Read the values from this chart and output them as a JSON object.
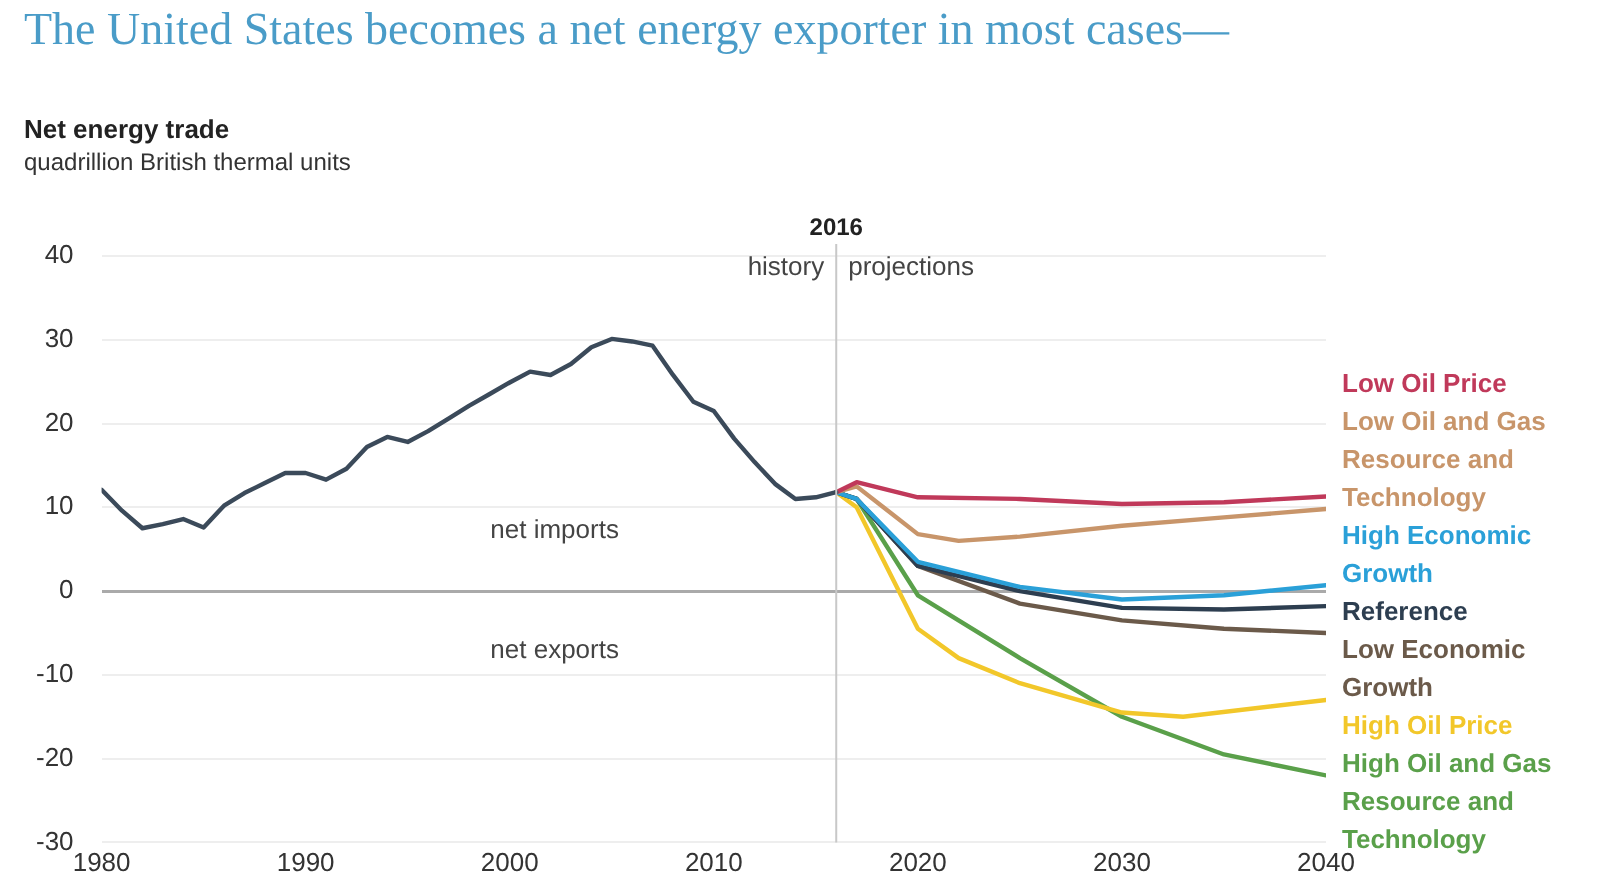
{
  "chart_data": {
    "type": "line",
    "title": "The United States becomes a net energy exporter in most cases—",
    "subtitle": "quadrillion British thermal units",
    "ylabel": "Net energy trade",
    "xlim": [
      1980,
      2040
    ],
    "xticks": [
      1980,
      1990,
      2000,
      2010,
      2020,
      2030,
      2040
    ],
    "ylim": [
      -30,
      40
    ],
    "yticks": [
      -30,
      -20,
      -10,
      0,
      10,
      20,
      30,
      40
    ],
    "grid": "y",
    "legend": "right",
    "marker": "none",
    "line_style": "solid",
    "ref_lines": [
      {
        "axis": "x",
        "value": 2016,
        "label": "2016",
        "color": "#c8c8c8"
      }
    ],
    "annotations": [
      "history",
      "projections",
      "net imports",
      "net exports"
    ],
    "series": [
      {
        "color": "#3b4a5a",
        "x": [
          1980,
          1981,
          1982,
          1983,
          1984,
          1985,
          1986,
          1987,
          1988,
          1989,
          1990,
          1991,
          1992,
          1993,
          1994,
          1995,
          1996,
          1997,
          1998,
          1999,
          2000,
          2001,
          2002,
          2003,
          2004,
          2005,
          2006,
          2007,
          2008,
          2009,
          2010,
          2011,
          2012,
          2013,
          2014,
          2015,
          2016
        ],
        "values": [
          12.1,
          9.6,
          7.5,
          8,
          8.6,
          7.6,
          10.2,
          11.7,
          12.9,
          14.1,
          14.1,
          13.3,
          14.6,
          17.2,
          18.4,
          17.8,
          19.1,
          20.6,
          22.1,
          23.5,
          24.9,
          26.2,
          25.8,
          27.1,
          29.1,
          30.1,
          29.8,
          29.3,
          25.8,
          22.6,
          21.5,
          18.2,
          15.4,
          12.8,
          11,
          11.2,
          11.8
        ]
      },
      {
        "name": "Low Oil Price",
        "color": "#c0395a",
        "x": [
          2016,
          2017,
          2020,
          2025,
          2030,
          2035,
          2040
        ],
        "values": [
          11.8,
          13,
          11.2,
          11,
          10.4,
          10.6,
          11.3
        ]
      },
      {
        "name": "Low Oil and Gas Resource and Technology",
        "color": "#c8956a",
        "x": [
          2016,
          2017,
          2020,
          2022,
          2025,
          2030,
          2035,
          2040
        ],
        "values": [
          11.8,
          12.5,
          6.8,
          6,
          6.5,
          7.8,
          8.8,
          9.8
        ]
      },
      {
        "name": "High Economic Growth",
        "color": "#2aa0d8",
        "x": [
          2016,
          2017,
          2020,
          2025,
          2030,
          2035,
          2040
        ],
        "values": [
          11.8,
          11,
          3.5,
          0.5,
          -1,
          -0.5,
          0.7
        ]
      },
      {
        "name": "Reference",
        "color": "#2d3e50",
        "x": [
          2016,
          2017,
          2020,
          2025,
          2030,
          2035,
          2040
        ],
        "values": [
          11.8,
          11,
          3,
          0,
          -2,
          -2.2,
          -1.8
        ]
      },
      {
        "name": "Low Economic Growth",
        "color": "#6b5a4a",
        "x": [
          2016,
          2017,
          2020,
          2025,
          2030,
          2035,
          2040
        ],
        "values": [
          11.8,
          11,
          3,
          -1.5,
          -3.5,
          -4.5,
          -5
        ]
      },
      {
        "name": "High Oil Price",
        "color": "#f2c72a",
        "x": [
          2016,
          2017,
          2020,
          2022,
          2025,
          2030,
          2033,
          2040
        ],
        "values": [
          11.8,
          10,
          -4.5,
          -8,
          -11,
          -14.5,
          -15,
          -13
        ]
      },
      {
        "name": "High Oil and Gas Resource and Technology",
        "color": "#5aa04a",
        "x": [
          2016,
          2017,
          2020,
          2025,
          2030,
          2035,
          2040
        ],
        "values": [
          11.8,
          11,
          -0.5,
          -8,
          -15,
          -19.5,
          -22
        ]
      }
    ]
  }
}
